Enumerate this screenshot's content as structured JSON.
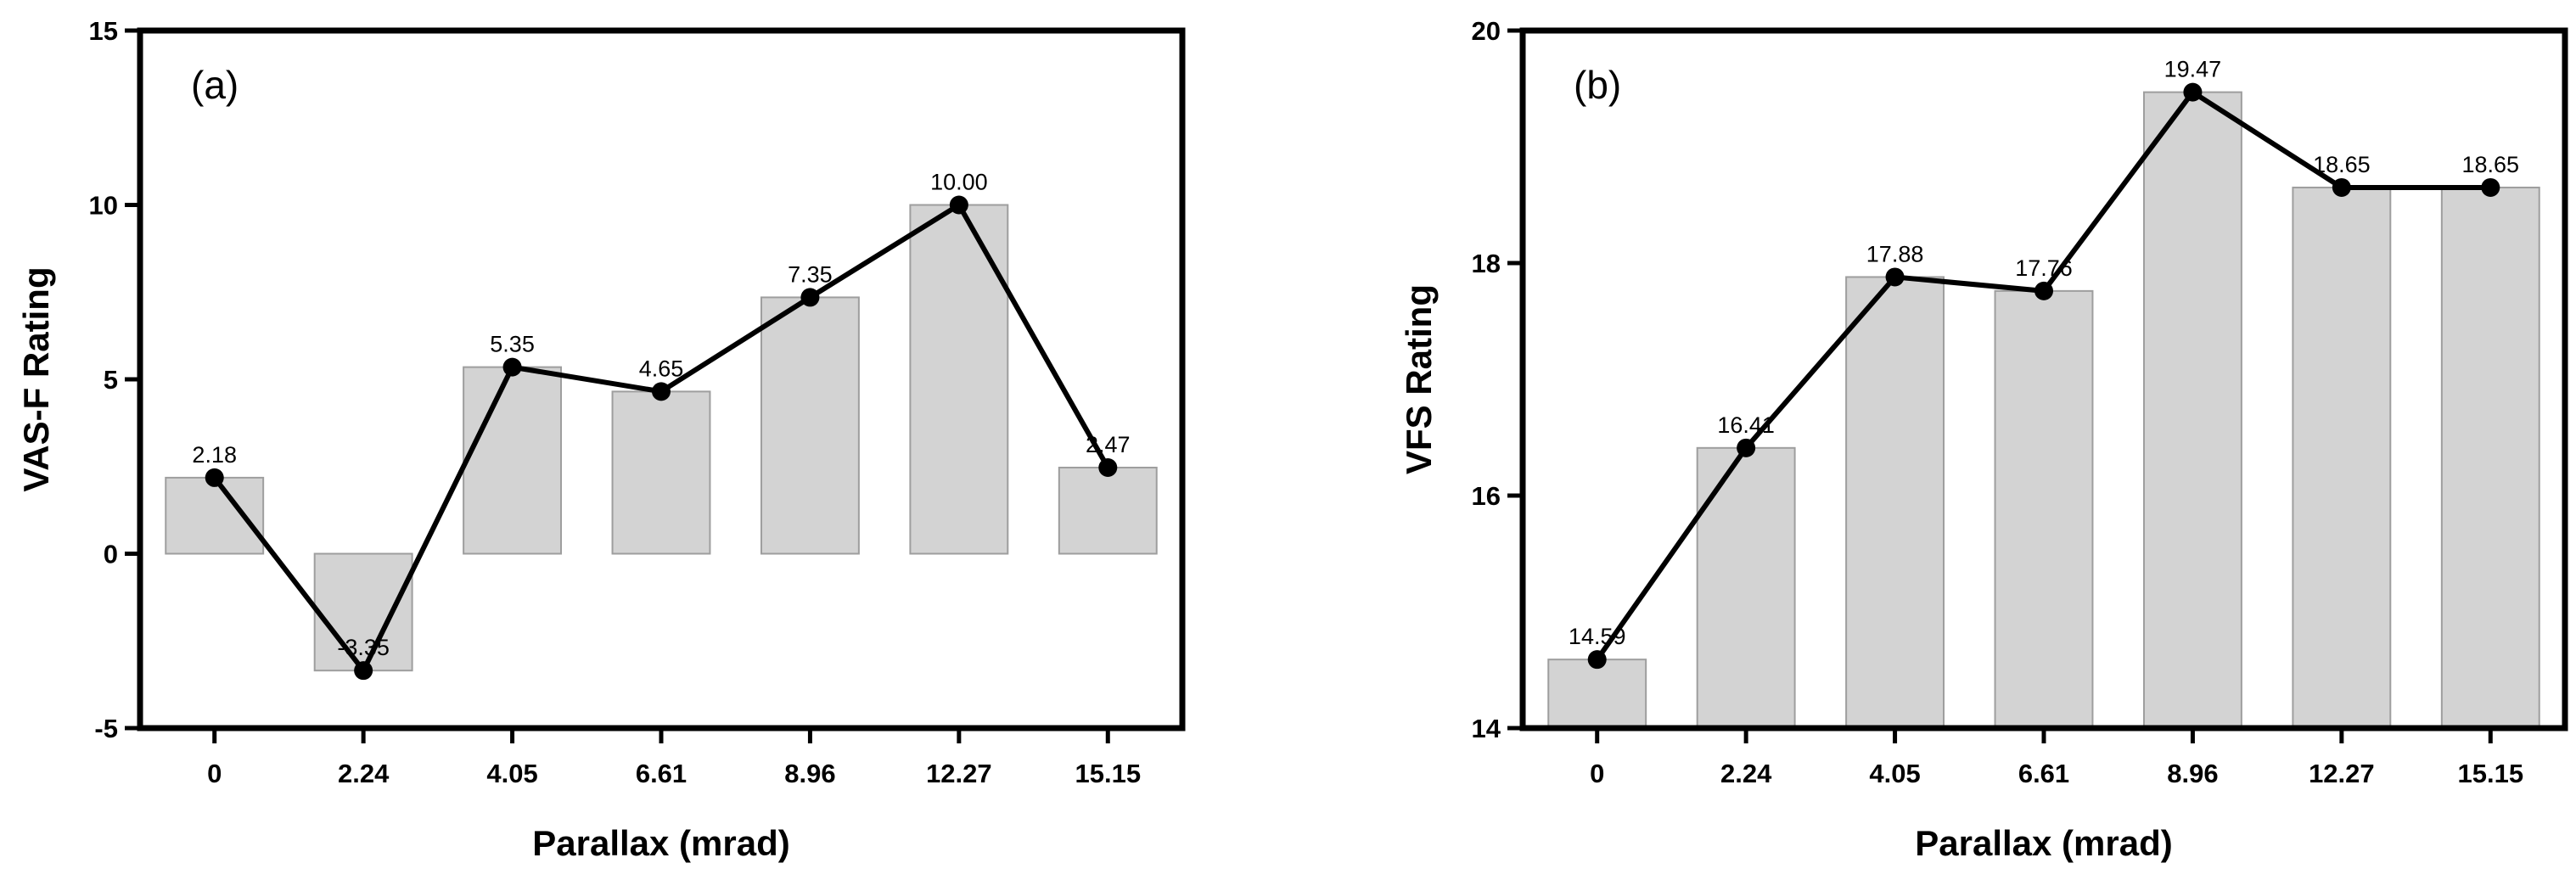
{
  "chart_data": [
    {
      "type": "bar",
      "panel_label": "(a)",
      "title": "",
      "xlabel": "Parallax (mrad)",
      "ylabel": "VAS-F Rating",
      "categories": [
        "0",
        "2.24",
        "4.05",
        "6.61",
        "8.96",
        "12.27",
        "15.15"
      ],
      "values": [
        2.18,
        -3.35,
        5.35,
        4.65,
        7.35,
        10.0,
        2.47
      ],
      "data_labels": [
        "2.18",
        "-3.35",
        "5.35",
        "4.65",
        "7.35",
        "10.00",
        "2.47"
      ],
      "ylim": [
        -5,
        15
      ],
      "yticks": [
        -5,
        0,
        5,
        10,
        15
      ],
      "ytick_labels": [
        "-5",
        "0",
        "5",
        "10",
        "15"
      ],
      "overlay_line": true,
      "grid": false,
      "bar_color": "#d3d3d3",
      "bar_edge_color": "#9e9e9e",
      "line_color": "#000000"
    },
    {
      "type": "bar",
      "panel_label": "(b)",
      "title": "",
      "xlabel": "Parallax (mrad)",
      "ylabel": "VFS Rating",
      "categories": [
        "0",
        "2.24",
        "4.05",
        "6.61",
        "8.96",
        "12.27",
        "15.15"
      ],
      "values": [
        14.59,
        16.41,
        17.88,
        17.76,
        19.47,
        18.65,
        18.65
      ],
      "data_labels": [
        "14.59",
        "16.41",
        "17.88",
        "17.76",
        "19.47",
        "18.65",
        "18.65"
      ],
      "ylim": [
        14,
        20
      ],
      "yticks": [
        14,
        16,
        18,
        20
      ],
      "ytick_labels": [
        "14",
        "16",
        "18",
        "20"
      ],
      "overlay_line": true,
      "grid": false,
      "bar_color": "#d3d3d3",
      "bar_edge_color": "#9e9e9e",
      "line_color": "#000000"
    }
  ]
}
